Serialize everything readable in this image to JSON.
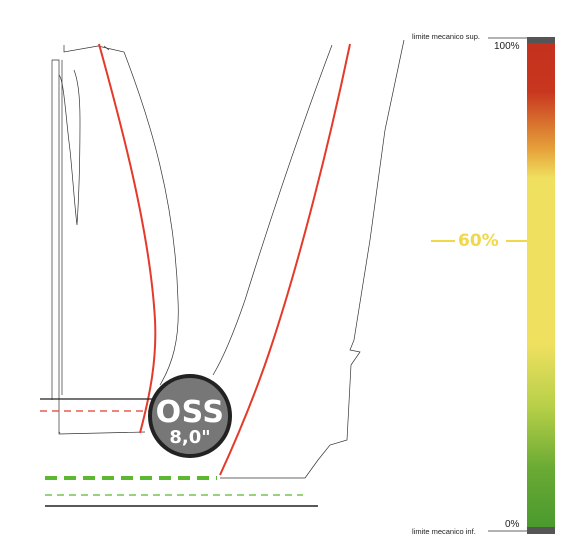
{
  "gauge": {
    "upper_limit_label": "limite mecanico sup.",
    "lower_limit_label": "limite mecanico inf.",
    "max_percent_label": "100%",
    "min_percent_label": "0%",
    "level_label": "60%",
    "level_fraction": 0.6,
    "colors": {
      "top": "#c4311e",
      "upper": "#e07a2c",
      "middle": "#f0e060",
      "lower": "#8cc040",
      "bottom": "#4a9a2e",
      "caps": "#555555",
      "level": "#f0d84a"
    }
  },
  "badge": {
    "title": "OSS",
    "value": "8,0\""
  },
  "colors": {
    "accent_red": "#e33a2a",
    "accent_green": "#5bb830",
    "outline": "#333333"
  }
}
